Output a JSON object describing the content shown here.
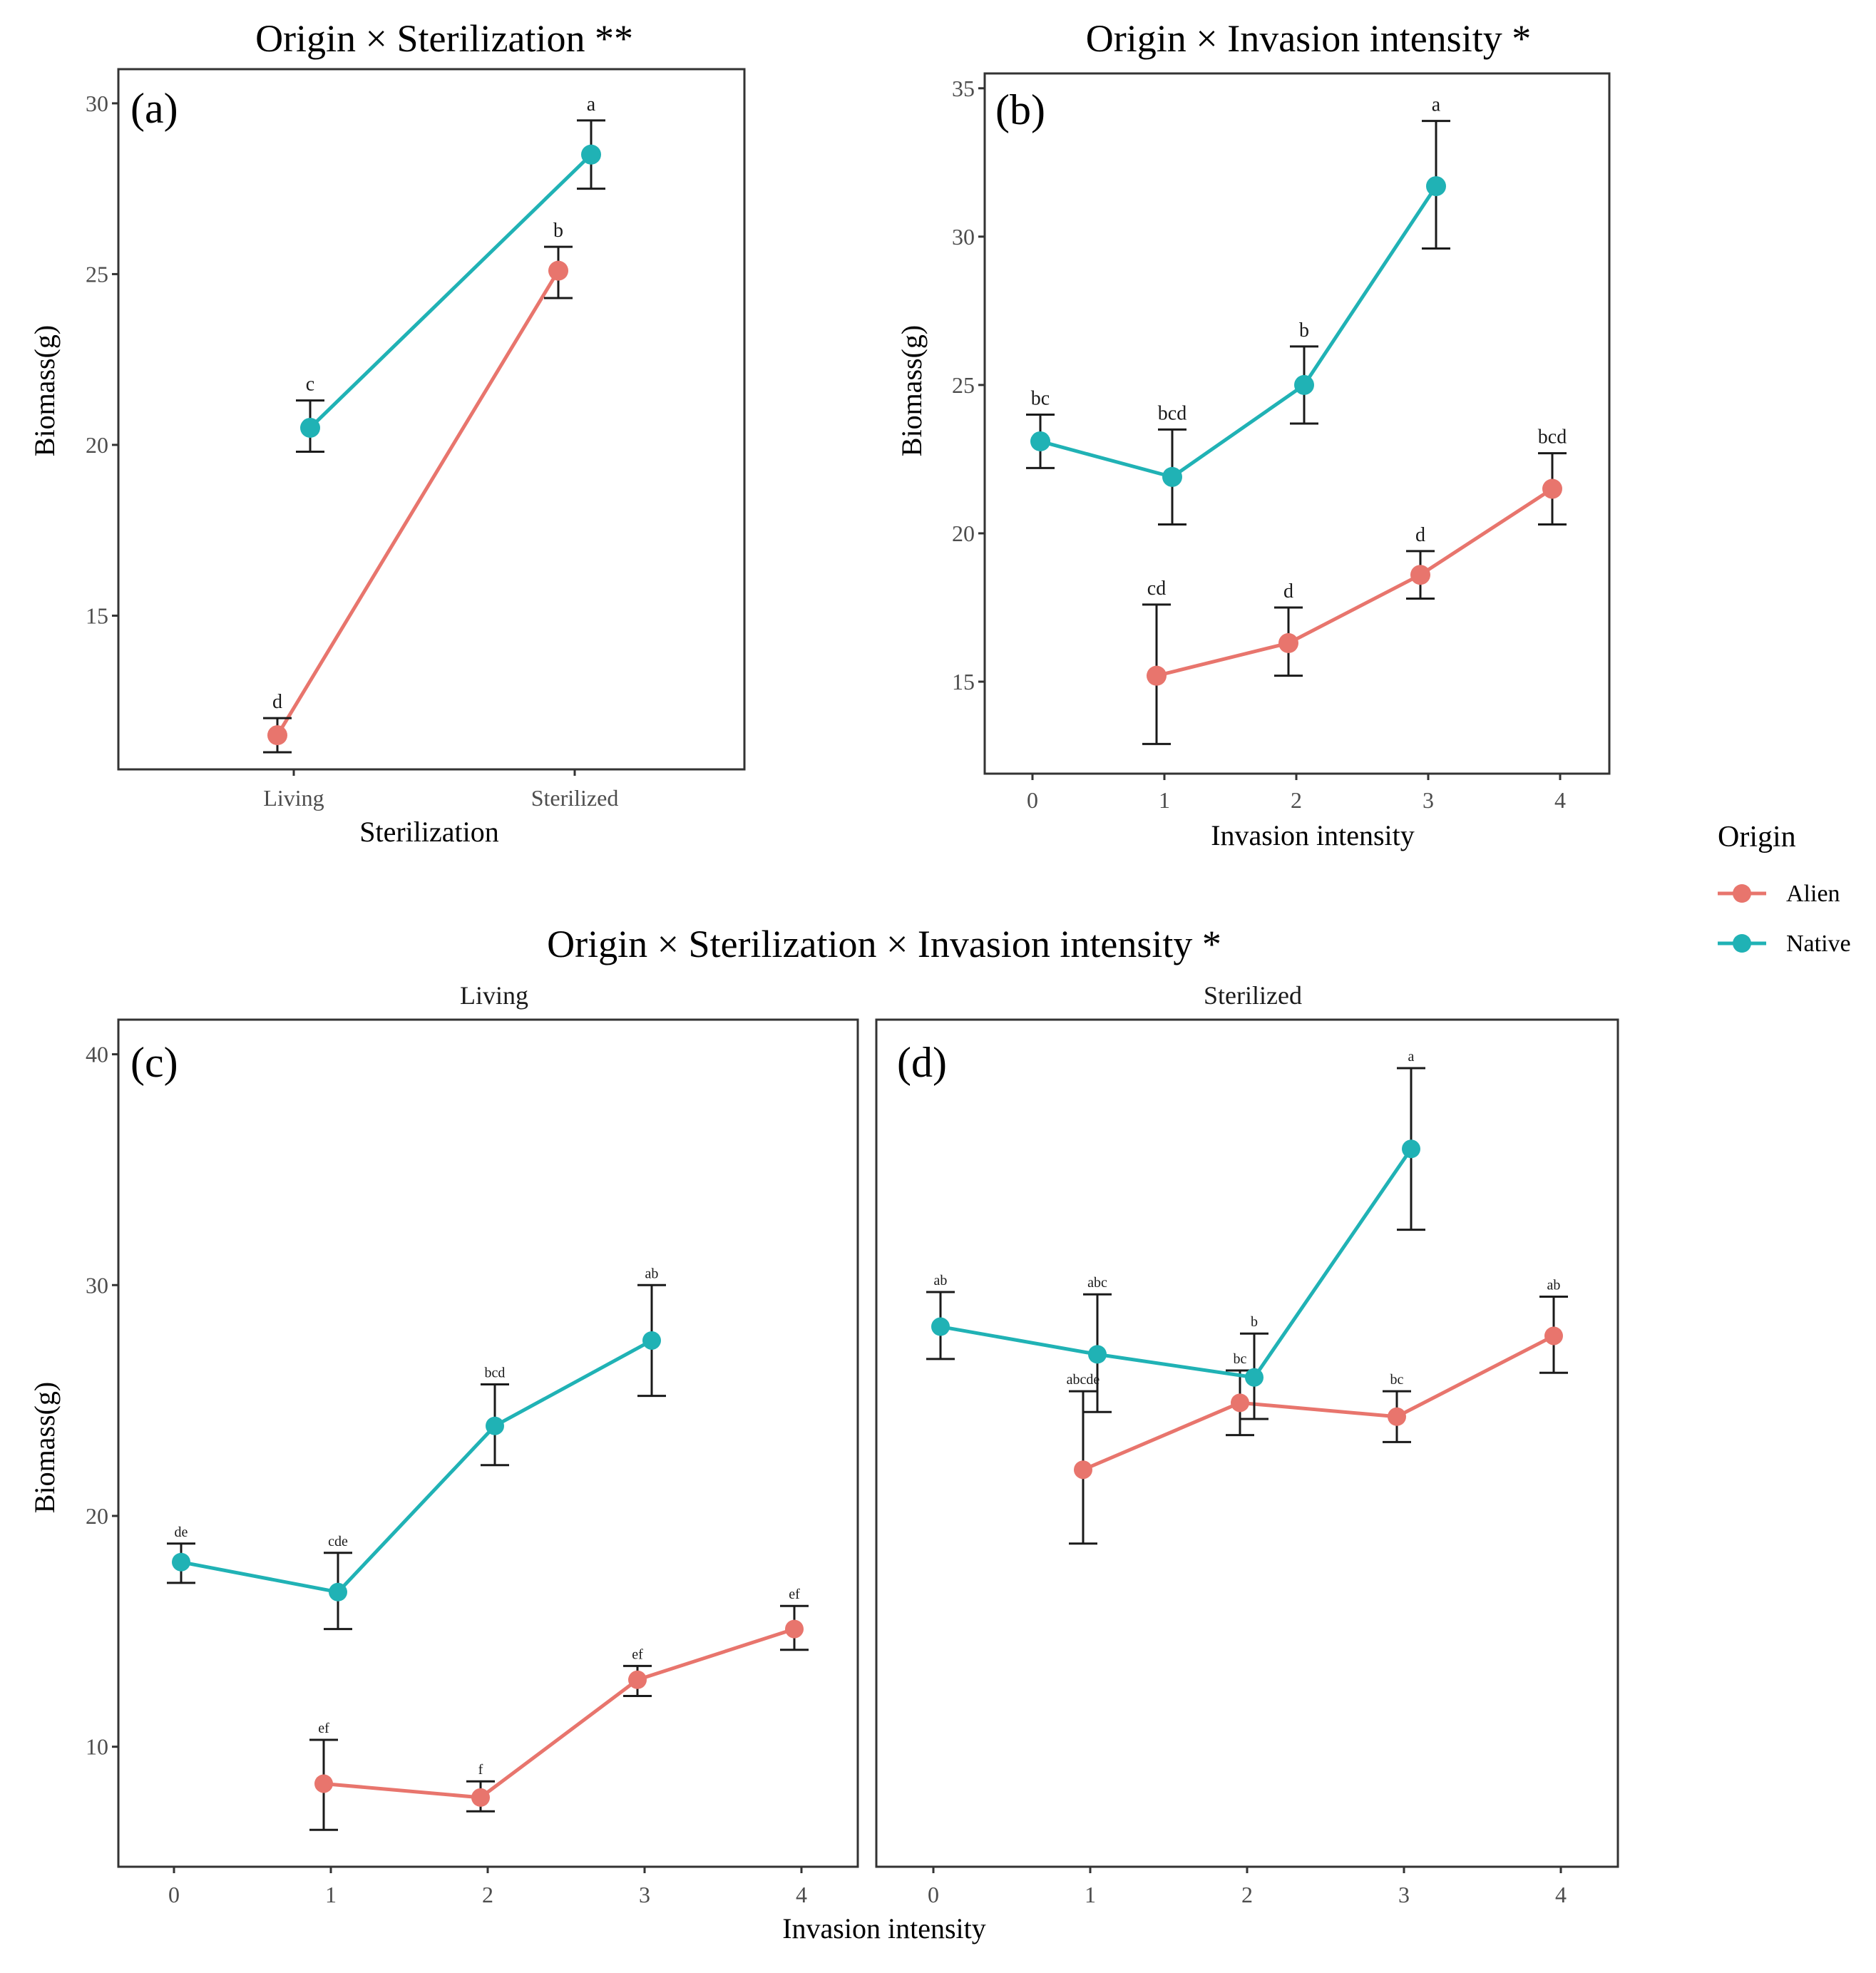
{
  "colors": {
    "alien": "#e8756d",
    "native": "#20b2b5"
  },
  "legend": {
    "title": "Origin",
    "items": [
      {
        "key": "alien",
        "label": "Alien"
      },
      {
        "key": "native",
        "label": "Native"
      }
    ]
  },
  "bottom_title": "Origin × Sterilization × Invasion intensity *",
  "bottom_xlabel": "Invasion intensity",
  "chart_data": [
    {
      "id": "a",
      "type": "line",
      "panel_tag": "(a)",
      "title": "Origin × Sterilization **",
      "xlabel": "Sterilization",
      "ylabel": "Biomass(g)",
      "categories": [
        "Living",
        "Sterilized"
      ],
      "ylim": [
        10.5,
        31
      ],
      "yticks": [
        15,
        20,
        25,
        30
      ],
      "series": [
        {
          "name": "Alien",
          "key": "alien",
          "x": [
            0,
            1
          ],
          "y": [
            11.5,
            25.1
          ],
          "err_lo": [
            11.0,
            24.3
          ],
          "err_hi": [
            12.0,
            25.8
          ],
          "letters": [
            "d",
            "b"
          ]
        },
        {
          "name": "Native",
          "key": "native",
          "x": [
            0,
            1
          ],
          "y": [
            20.5,
            28.5
          ],
          "err_lo": [
            19.8,
            27.5
          ],
          "err_hi": [
            21.3,
            29.5
          ],
          "letters": [
            "c",
            "a"
          ]
        }
      ]
    },
    {
      "id": "b",
      "type": "line",
      "panel_tag": "(b)",
      "title": "Origin × Invasion intensity *",
      "xlabel": "Invasion intensity",
      "ylabel": "Biomass(g)",
      "categories": [
        "0",
        "1",
        "2",
        "3",
        "4"
      ],
      "ylim": [
        11.9,
        35.5
      ],
      "yticks": [
        15,
        20,
        25,
        30,
        35
      ],
      "series": [
        {
          "name": "Alien",
          "key": "alien",
          "x": [
            1,
            2,
            3,
            4
          ],
          "y": [
            15.2,
            16.3,
            18.6,
            21.5
          ],
          "err_lo": [
            12.9,
            15.2,
            17.8,
            20.3
          ],
          "err_hi": [
            17.6,
            17.5,
            19.4,
            22.7
          ],
          "letters": [
            "cd",
            "d",
            "d",
            "bcd"
          ]
        },
        {
          "name": "Native",
          "key": "native",
          "x": [
            0,
            1,
            2,
            3
          ],
          "y": [
            23.1,
            21.9,
            25.0,
            31.7
          ],
          "err_lo": [
            22.2,
            20.3,
            23.7,
            29.6
          ],
          "err_hi": [
            24.0,
            23.5,
            26.3,
            33.9
          ],
          "letters": [
            "bc",
            "bcd",
            "b",
            "a"
          ]
        }
      ]
    },
    {
      "id": "c",
      "type": "line",
      "panel_tag": "(c)",
      "strip": "Living",
      "ylabel": "Biomass(g)",
      "categories": [
        "0",
        "1",
        "2",
        "3",
        "4"
      ],
      "ylim": [
        4.8,
        41.5
      ],
      "yticks": [
        10,
        20,
        30,
        40
      ],
      "series": [
        {
          "name": "Alien",
          "key": "alien",
          "x": [
            1,
            2,
            3,
            4
          ],
          "y": [
            8.4,
            7.8,
            12.9,
            15.1
          ],
          "err_lo": [
            6.4,
            7.2,
            12.2,
            14.2
          ],
          "err_hi": [
            10.3,
            8.5,
            13.5,
            16.1
          ],
          "letters": [
            "ef",
            "f",
            "ef",
            "ef"
          ]
        },
        {
          "name": "Native",
          "key": "native",
          "x": [
            0,
            1,
            2,
            3
          ],
          "y": [
            18.0,
            16.7,
            23.9,
            27.6
          ],
          "err_lo": [
            17.1,
            15.1,
            22.2,
            25.2
          ],
          "err_hi": [
            18.8,
            18.4,
            25.7,
            30.0
          ],
          "letters": [
            "de",
            "cde",
            "bcd",
            "ab"
          ]
        }
      ]
    },
    {
      "id": "d",
      "type": "line",
      "panel_tag": "(d)",
      "strip": "Sterilized",
      "categories": [
        "0",
        "1",
        "2",
        "3",
        "4"
      ],
      "ylim": [
        4.8,
        41.5
      ],
      "yticks": [
        10,
        20,
        30,
        40
      ],
      "series": [
        {
          "name": "Alien",
          "key": "alien",
          "x": [
            1,
            2,
            3,
            4
          ],
          "y": [
            22.0,
            24.9,
            24.3,
            27.8
          ],
          "err_lo": [
            18.8,
            23.5,
            23.2,
            26.2
          ],
          "err_hi": [
            25.4,
            26.3,
            25.4,
            29.5
          ],
          "letters": [
            "abcde",
            "bc",
            "bc",
            "ab"
          ]
        },
        {
          "name": "Native",
          "key": "native",
          "x": [
            0,
            1,
            2,
            3
          ],
          "y": [
            28.2,
            27.0,
            26.0,
            35.9
          ],
          "err_lo": [
            26.8,
            24.5,
            24.2,
            32.4
          ],
          "err_hi": [
            29.7,
            29.6,
            27.9,
            39.4
          ],
          "letters": [
            "ab",
            "abc",
            "b",
            "a"
          ]
        }
      ]
    }
  ]
}
